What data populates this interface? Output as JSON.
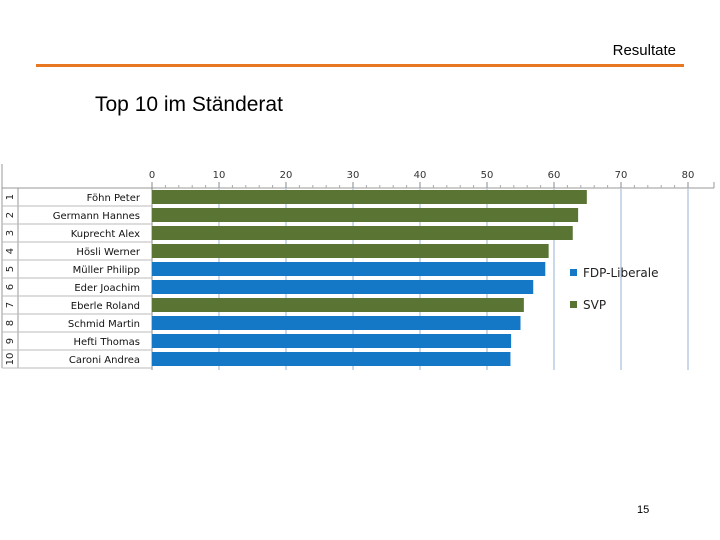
{
  "header": {
    "title": "Resultate"
  },
  "slide": {
    "title": "Top 10 im Ständerat",
    "page_number": "15"
  },
  "colors": {
    "accent": "#e87722",
    "svp": "#5a7433",
    "fdp": "#1578c6",
    "grid": "#b8cce4"
  },
  "chart_data": {
    "type": "bar",
    "orientation": "horizontal",
    "title": "Top 10 im Ständerat",
    "xlabel": "",
    "ylabel": "",
    "xlim": [
      0,
      80
    ],
    "x_ticks": [
      0,
      10,
      20,
      30,
      40,
      50,
      60,
      70,
      80
    ],
    "grid": "vertical",
    "legend_position": "right",
    "legend": [
      {
        "name": "FDP-Liberale",
        "color": "#1578c6"
      },
      {
        "name": "SVP",
        "color": "#5a7433"
      }
    ],
    "ranks": [
      "1",
      "2",
      "3",
      "4",
      "5",
      "6",
      "7",
      "8",
      "9",
      "10"
    ],
    "categories": [
      "Föhn Peter",
      "Germann Hannes",
      "Kuprecht Alex",
      "Hösli Werner",
      "Müller Philipp",
      "Eder Joachim",
      "Eberle Roland",
      "Schmid Martin",
      "Hefti Thomas",
      "Caroni Andrea"
    ],
    "values": [
      64.9,
      63.6,
      62.8,
      59.2,
      58.7,
      56.9,
      55.5,
      55.0,
      53.6,
      53.5
    ],
    "parties": [
      "SVP",
      "SVP",
      "SVP",
      "SVP",
      "FDP-Liberale",
      "FDP-Liberale",
      "SVP",
      "FDP-Liberale",
      "FDP-Liberale",
      "FDP-Liberale"
    ]
  }
}
